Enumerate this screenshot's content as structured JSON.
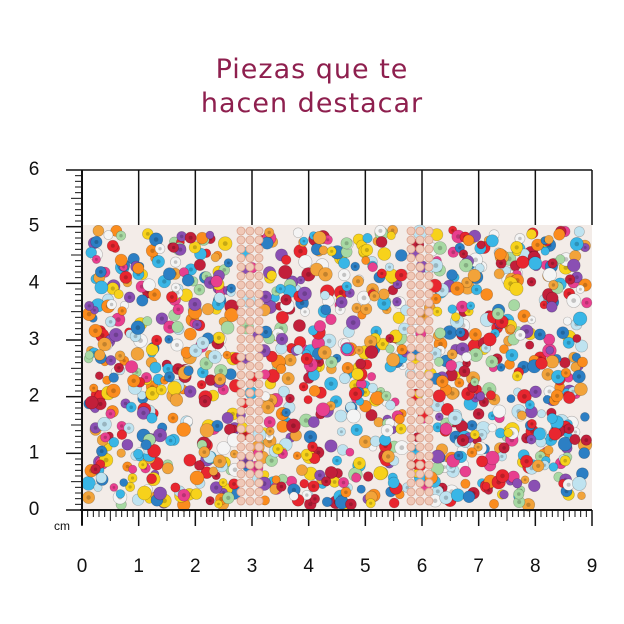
{
  "header": {
    "title_lines": [
      "Piezas que te",
      "hacen destacar"
    ]
  },
  "ruler": {
    "unit": "cm",
    "x_labels": [
      "0",
      "1",
      "2",
      "3",
      "4",
      "5",
      "6",
      "7",
      "8",
      "9"
    ],
    "y_labels": [
      "0",
      "1",
      "2",
      "3",
      "4",
      "5",
      "6"
    ]
  }
}
